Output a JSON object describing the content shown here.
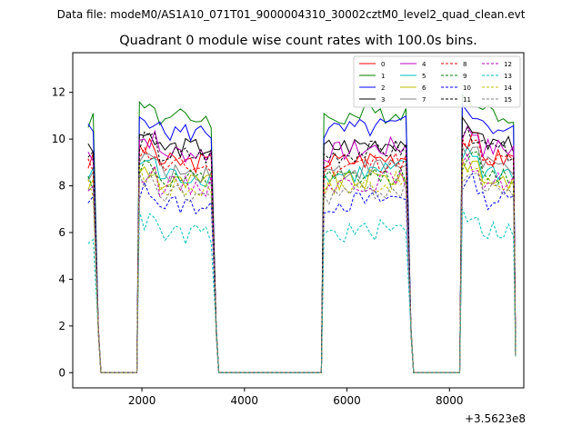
{
  "header": {
    "data_file": "Data file: modeM0/AS1A10_071T01_9000004310_30002cztM0_level2_quad_clean.evt"
  },
  "chart_data": {
    "type": "line",
    "title": "Quadrant 0 module wise count rates with 100.0s bins.",
    "xlabel": "",
    "ylabel": "",
    "x_offset_label": "+3.5623e8",
    "xlim": [
      650,
      9450
    ],
    "ylim": [
      -0.65,
      13.7
    ],
    "xticks": [
      2000,
      4000,
      6000,
      8000
    ],
    "xtick_labels": [
      "2000",
      "4000",
      "6000",
      "8000"
    ],
    "yticks": [
      0,
      2,
      4,
      6,
      8,
      10,
      12
    ],
    "ytick_labels": [
      "0",
      "2",
      "4",
      "6",
      "8",
      "10",
      "12"
    ],
    "legend_position": "top-right",
    "segments": [
      {
        "start": 950,
        "end": 1050
      },
      {
        "start": 1950,
        "end": 3350
      },
      {
        "start": 5550,
        "end": 7150
      },
      {
        "start": 8250,
        "end": 9250
      }
    ],
    "gap_level": 0,
    "series": [
      {
        "name": "0",
        "color": "#ff0000",
        "dash": "solid",
        "base": 9.0
      },
      {
        "name": "1",
        "color": "#008000",
        "dash": "solid",
        "base": 10.9
      },
      {
        "name": "2",
        "color": "#0000ff",
        "dash": "solid",
        "base": 10.3
      },
      {
        "name": "3",
        "color": "#000000",
        "dash": "solid",
        "base": 9.6
      },
      {
        "name": "4",
        "color": "#bf00bf",
        "dash": "solid",
        "base": 9.4
      },
      {
        "name": "5",
        "color": "#00bfbf",
        "dash": "solid",
        "base": 8.4
      },
      {
        "name": "6",
        "color": "#bfbf00",
        "dash": "solid",
        "base": 8.1
      },
      {
        "name": "7",
        "color": "#808080",
        "dash": "solid",
        "base": 8.6
      },
      {
        "name": "8",
        "color": "#ff0000",
        "dash": "dashed",
        "base": 8.8
      },
      {
        "name": "9",
        "color": "#008000",
        "dash": "dashed",
        "base": 8.2
      },
      {
        "name": "10",
        "color": "#0000ff",
        "dash": "dashed",
        "base": 7.2
      },
      {
        "name": "11",
        "color": "#000000",
        "dash": "dashed",
        "base": 9.3
      },
      {
        "name": "12",
        "color": "#bf00bf",
        "dash": "dashed",
        "base": 8.0
      },
      {
        "name": "13",
        "color": "#00bfbf",
        "dash": "dashed",
        "base": 5.9
      },
      {
        "name": "14",
        "color": "#bfbf00",
        "dash": "dashed",
        "base": 7.9
      },
      {
        "name": "15",
        "color": "#808080",
        "dash": "dashed",
        "base": 7.6
      }
    ]
  }
}
